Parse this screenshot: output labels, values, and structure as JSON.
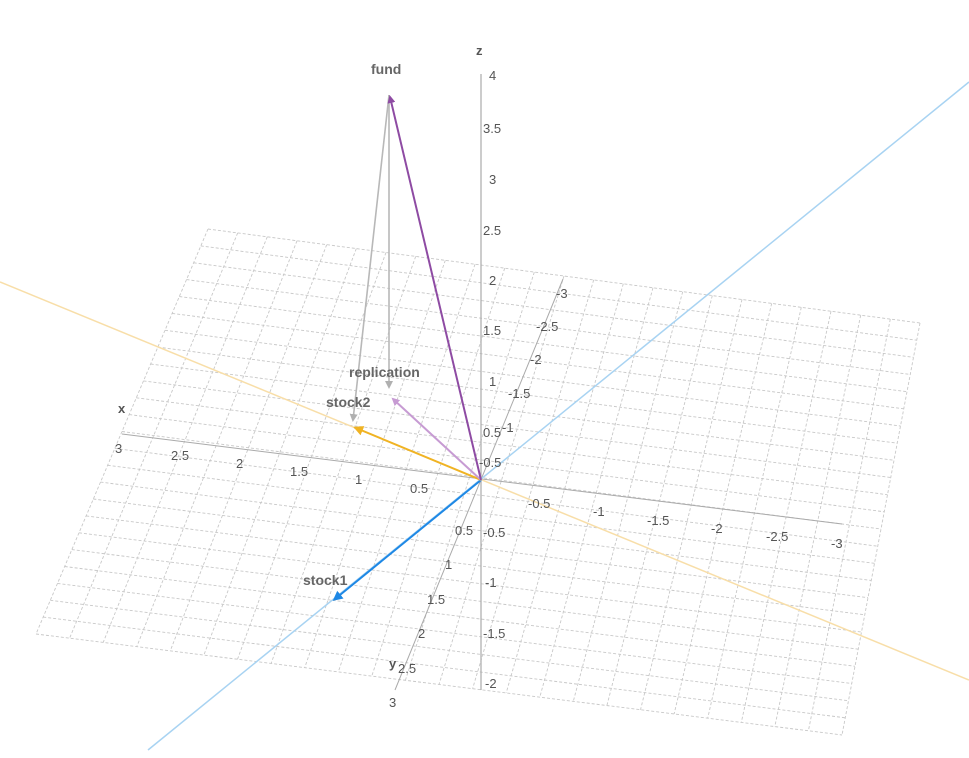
{
  "axes": {
    "x": {
      "label": "x",
      "ticks": [
        "3",
        "2.5",
        "2",
        "1.5",
        "1",
        "0.5",
        "-0.5",
        "-1",
        "-1.5",
        "-2",
        "-2.5",
        "-3"
      ]
    },
    "y": {
      "label": "y",
      "ticks": [
        "-3",
        "-2.5",
        "-2",
        "-1.5",
        "-1",
        "-0.5",
        "0.5",
        "1",
        "1.5",
        "2",
        "2.5",
        "3"
      ]
    },
    "z": {
      "label": "z",
      "ticks": [
        "4",
        "3.5",
        "3",
        "2.5",
        "2",
        "1.5",
        "1",
        "0.5",
        "-0.5",
        "-1",
        "-1.5",
        "-2"
      ]
    }
  },
  "vectors": [
    {
      "id": "fund",
      "label": "fund",
      "color": "#8e4ba3"
    },
    {
      "id": "replication",
      "label": "replication",
      "color": "#c79bd3"
    },
    {
      "id": "stock1",
      "label": "stock1",
      "color": "#1e88e5"
    },
    {
      "id": "stock2",
      "label": "stock2",
      "color": "#f0b323"
    }
  ],
  "colors": {
    "grid": "#c8c8c8",
    "axis": "#aaaaaa",
    "projection": "#b8b8b8",
    "stock1_line": "#a8d3f2",
    "stock2_line": "#f8dea8"
  }
}
